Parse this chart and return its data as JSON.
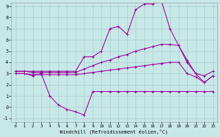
{
  "xlabel": "Windchill (Refroidissement éolien,°C)",
  "background_color": "#c8e8e8",
  "grid_color": "#a8cccc",
  "line_color": "#990099",
  "xlim": [
    0,
    23
  ],
  "ylim": [
    -1,
    9
  ],
  "xticks": [
    0,
    1,
    2,
    3,
    4,
    5,
    6,
    7,
    8,
    9,
    10,
    11,
    12,
    13,
    14,
    15,
    16,
    17,
    18,
    19,
    20,
    21,
    22,
    23
  ],
  "yticks": [
    -1,
    0,
    1,
    2,
    3,
    4,
    5,
    6,
    7,
    8,
    9
  ],
  "series": [
    {
      "x": [
        0,
        1,
        2,
        3,
        4,
        5,
        6,
        7,
        8,
        9,
        10,
        11,
        12,
        13,
        14,
        15,
        16,
        17,
        18,
        19,
        20,
        21,
        22,
        23
      ],
      "y": [
        3.0,
        3.0,
        2.8,
        3.0,
        1.0,
        0.2,
        -0.2,
        -0.4,
        -0.7,
        1.4,
        1.4,
        1.4,
        1.4,
        1.4,
        1.4,
        1.4,
        1.4,
        1.4,
        1.4,
        1.4,
        1.4,
        1.4,
        1.4,
        1.4
      ]
    },
    {
      "x": [
        0,
        1,
        2,
        3,
        4,
        5,
        6,
        7,
        8,
        9,
        10,
        11,
        12,
        13,
        14,
        15,
        16,
        17,
        18,
        19,
        20,
        21,
        22,
        23
      ],
      "y": [
        3.0,
        3.0,
        2.9,
        2.9,
        2.9,
        2.9,
        2.9,
        2.9,
        3.0,
        3.1,
        3.2,
        3.3,
        3.4,
        3.5,
        3.6,
        3.7,
        3.8,
        3.9,
        4.0,
        4.0,
        3.0,
        2.7,
        2.2,
        2.8
      ]
    },
    {
      "x": [
        0,
        1,
        2,
        3,
        4,
        5,
        6,
        7,
        8,
        9,
        10,
        11,
        12,
        13,
        14,
        15,
        16,
        17,
        18,
        19,
        20,
        21,
        22,
        23
      ],
      "y": [
        3.2,
        3.2,
        3.1,
        3.1,
        3.1,
        3.1,
        3.1,
        3.1,
        3.4,
        3.7,
        4.0,
        4.2,
        4.5,
        4.7,
        5.0,
        5.2,
        5.4,
        5.6,
        5.6,
        5.5,
        4.0,
        3.0,
        2.8,
        3.2
      ]
    },
    {
      "x": [
        0,
        1,
        2,
        3,
        4,
        5,
        6,
        7,
        8,
        9,
        10,
        11,
        12,
        13,
        14,
        15,
        16,
        17,
        18,
        19,
        20,
        21,
        22,
        23
      ],
      "y": [
        3.2,
        3.2,
        3.2,
        3.2,
        3.2,
        3.2,
        3.2,
        3.2,
        4.5,
        4.5,
        5.0,
        7.0,
        7.2,
        6.5,
        8.7,
        9.2,
        9.2,
        9.5,
        7.0,
        5.5,
        4.2,
        3.0,
        2.2,
        2.8
      ]
    }
  ]
}
